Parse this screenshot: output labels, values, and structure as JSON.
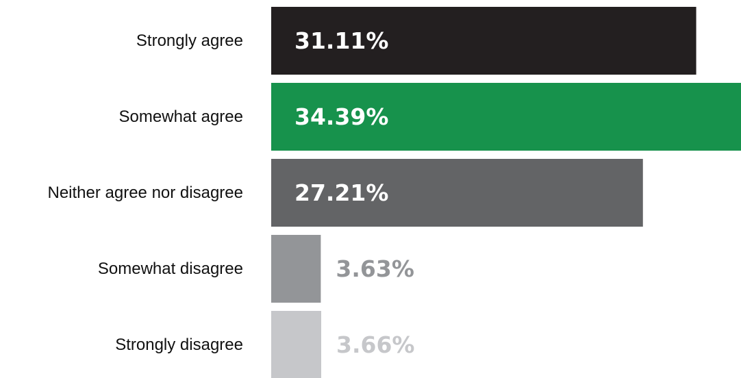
{
  "chart_data": {
    "type": "bar",
    "orientation": "horizontal",
    "categories": [
      "Strongly agree",
      "Somewhat agree",
      "Neither agree nor disagree",
      "Somewhat disagree",
      "Strongly disagree"
    ],
    "values": [
      31.11,
      34.39,
      27.21,
      3.63,
      3.66
    ],
    "value_labels": [
      "31.11%",
      "34.39%",
      "27.21%",
      "3.63%",
      "3.66%"
    ],
    "colors": [
      "#231f20",
      "#17924c",
      "#636466",
      "#939598",
      "#c6c7ca"
    ],
    "value_label_colors": [
      "#ffffff",
      "#ffffff",
      "#ffffff",
      "#939598",
      "#c6c7ca"
    ],
    "xlim": [
      0,
      34.39
    ],
    "grid": false,
    "legend": "none",
    "unit": "%"
  }
}
